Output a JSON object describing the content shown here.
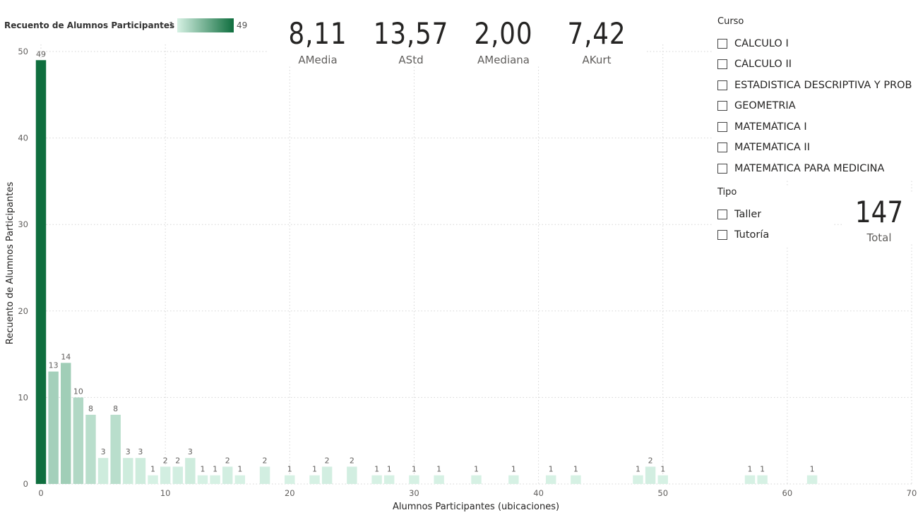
{
  "legend": {
    "title": "Recuento de Alumnos Participantes",
    "min": "1",
    "max": "49"
  },
  "kpis": [
    {
      "value": "8,11",
      "label": "AMedia"
    },
    {
      "value": "13,57",
      "label": "AStd"
    },
    {
      "value": "2,00",
      "label": "AMediana"
    },
    {
      "value": "7,42",
      "label": "AKurt"
    }
  ],
  "slicer_curso": {
    "title": "Curso",
    "items": [
      "CÁLCULO I",
      "CÁLCULO II",
      "ESTADISTICA DESCRIPTIVA Y PROB",
      "GEOMETRIA",
      "MATEMÁTICA I",
      "MATEMÁTICA II",
      "MATEMÁTICA PARA MEDICINA"
    ]
  },
  "slicer_tipo": {
    "title": "Tipo",
    "items": [
      "Taller",
      "Tutoría"
    ]
  },
  "total": {
    "value": "147",
    "label": "Total"
  },
  "colors": {
    "low": "#d6f1e4",
    "high": "#0f6e3e",
    "grid": "#d5d5d5",
    "axis_text": "#605e5c"
  },
  "chart_data": {
    "type": "bar",
    "xlabel": "Alumnos Participantes (ubicaciones)",
    "ylabel": "Recuento de Alumnos Participantes",
    "xlim": [
      0,
      70
    ],
    "ylim": [
      0,
      50
    ],
    "x_ticks": [
      0,
      10,
      20,
      30,
      40,
      50,
      60,
      70
    ],
    "y_ticks": [
      0,
      10,
      20,
      30,
      40,
      50
    ],
    "grid": true,
    "color_scale": {
      "min": 1,
      "max": 49
    },
    "x": [
      0,
      1,
      2,
      3,
      4,
      5,
      6,
      7,
      8,
      9,
      10,
      11,
      12,
      13,
      14,
      15,
      16,
      18,
      20,
      22,
      23,
      25,
      27,
      28,
      30,
      32,
      35,
      38,
      41,
      43,
      48,
      49,
      50,
      57,
      58,
      62
    ],
    "values": [
      49,
      13,
      14,
      10,
      8,
      3,
      8,
      3,
      3,
      1,
      2,
      2,
      3,
      1,
      1,
      2,
      1,
      2,
      1,
      1,
      2,
      2,
      1,
      1,
      1,
      1,
      1,
      1,
      1,
      1,
      1,
      2,
      1,
      1,
      1,
      1
    ]
  }
}
